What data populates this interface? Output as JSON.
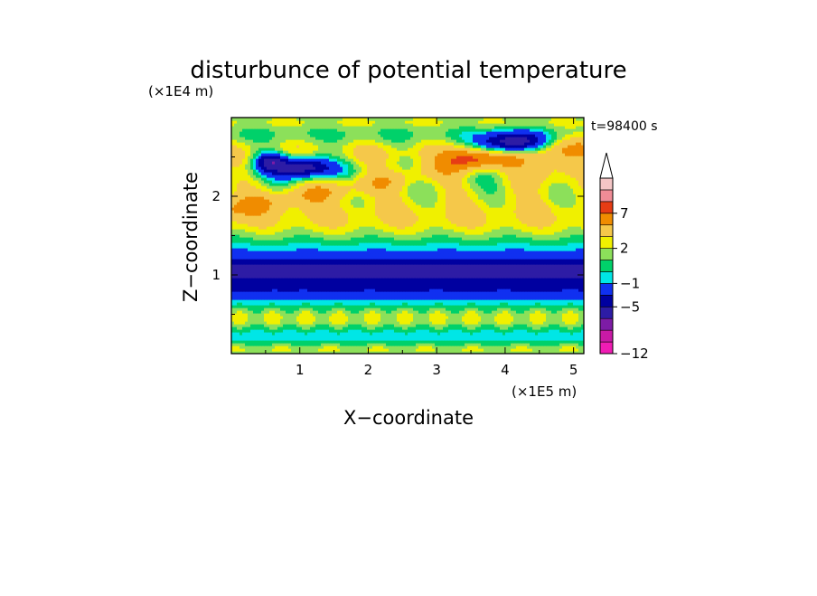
{
  "chart_data": {
    "type": "heatmap",
    "title": "disturbunce of potential temperature",
    "xlabel": "X−coordinate",
    "ylabel": "Z−coordinate",
    "x_unit_label": "(×1E5 m)",
    "y_unit_label": "(×1E4 m)",
    "time_label": "t=98400 s",
    "xlim": [
      0,
      5.15
    ],
    "ylim": [
      0,
      3.0
    ],
    "x_ticks": [
      1,
      2,
      3,
      4,
      5
    ],
    "x_tick_labels": [
      "1",
      "2",
      "3",
      "4",
      "5"
    ],
    "y_ticks": [
      1,
      2
    ],
    "y_tick_labels": [
      "1",
      "2"
    ],
    "colorbar": {
      "levels": [
        -12,
        -11,
        -9,
        -7,
        -5,
        -3,
        -1,
        0,
        1,
        2,
        3,
        5,
        7,
        9,
        11
      ],
      "colors": [
        "#f01cb4",
        "#c81aa6",
        "#7d1ca5",
        "#2d1ca5",
        "#0000a0",
        "#1030f0",
        "#00e6e6",
        "#00d16a",
        "#8ce05a",
        "#f0f000",
        "#f5c84a",
        "#f08c00",
        "#e63c14",
        "#f08c96",
        "#f4c6c6"
      ],
      "tick_values": [
        -12,
        -5,
        -1,
        2,
        7
      ],
      "tick_labels": [
        "−12",
        "−5",
        "−1",
        "2",
        "7"
      ],
      "extend": "max"
    },
    "field_structure": [
      {
        "z_range": [
          0.0,
          0.12
        ],
        "level_range": [
          0,
          3
        ],
        "description": "near-surface banding"
      },
      {
        "z_range": [
          0.12,
          0.35
        ],
        "level_range": [
          -1,
          1
        ]
      },
      {
        "z_range": [
          0.35,
          0.7
        ],
        "level_range": [
          0,
          3
        ]
      },
      {
        "z_range": [
          0.7,
          0.9
        ],
        "level_range": [
          -3,
          -1
        ]
      },
      {
        "z_range": [
          0.9,
          1.2
        ],
        "level_range": [
          -7,
          -5
        ]
      },
      {
        "z_range": [
          1.2,
          1.5
        ],
        "level_range": [
          -1,
          0
        ]
      },
      {
        "z_range": [
          1.5,
          2.3
        ],
        "level_range": [
          1,
          7
        ]
      },
      {
        "z_range": [
          2.3,
          2.9
        ],
        "level_range": [
          -7,
          5
        ]
      },
      {
        "z_range": [
          2.9,
          3.0
        ],
        "level_range": [
          1,
          3
        ]
      }
    ]
  }
}
